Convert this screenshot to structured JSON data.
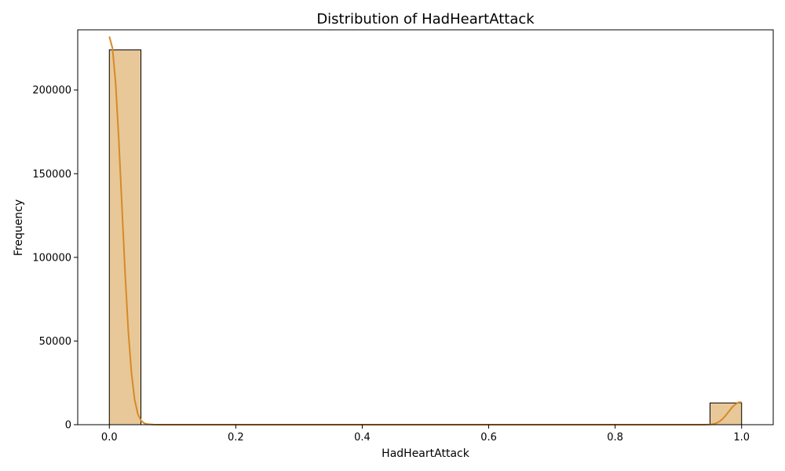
{
  "chart_data": {
    "type": "bar",
    "title": "Distribution of HadHeartAttack",
    "xlabel": "HadHeartAttack",
    "ylabel": "Frequency",
    "xlim": [
      -0.05,
      1.05
    ],
    "ylim": [
      0,
      236000
    ],
    "x_ticks": [
      {
        "value": 0.0,
        "label": "0.0"
      },
      {
        "value": 0.2,
        "label": "0.2"
      },
      {
        "value": 0.4,
        "label": "0.4"
      },
      {
        "value": 0.6,
        "label": "0.6"
      },
      {
        "value": 0.8,
        "label": "0.8"
      },
      {
        "value": 1.0,
        "label": "1.0"
      }
    ],
    "y_ticks": [
      {
        "value": 0,
        "label": "0"
      },
      {
        "value": 50000,
        "label": "50000"
      },
      {
        "value": 100000,
        "label": "100000"
      },
      {
        "value": 150000,
        "label": "150000"
      },
      {
        "value": 200000,
        "label": "200000"
      }
    ],
    "bins": [
      {
        "x0": 0.0,
        "x1": 0.05,
        "count": 224000
      },
      {
        "x0": 0.95,
        "x1": 1.0,
        "count": 13000
      }
    ],
    "kde": [
      [
        0.0,
        232000
      ],
      [
        0.005,
        225000
      ],
      [
        0.01,
        204000
      ],
      [
        0.015,
        170000
      ],
      [
        0.02,
        130000
      ],
      [
        0.025,
        90000
      ],
      [
        0.03,
        56000
      ],
      [
        0.035,
        31000
      ],
      [
        0.04,
        15000
      ],
      [
        0.045,
        6500
      ],
      [
        0.05,
        2500
      ],
      [
        0.055,
        900
      ],
      [
        0.06,
        300
      ],
      [
        0.07,
        50
      ],
      [
        0.08,
        0
      ],
      [
        0.9,
        0
      ],
      [
        0.94,
        0
      ],
      [
        0.95,
        120
      ],
      [
        0.955,
        350
      ],
      [
        0.96,
        900
      ],
      [
        0.965,
        1900
      ],
      [
        0.97,
        3500
      ],
      [
        0.975,
        5600
      ],
      [
        0.98,
        8000
      ],
      [
        0.985,
        10400
      ],
      [
        0.99,
        12200
      ],
      [
        0.995,
        13300
      ],
      [
        1.0,
        13500
      ]
    ],
    "grid": false,
    "colors": {
      "bar_fill": "#e8c898",
      "bar_edge": "#000000",
      "kde_line": "#d68a28"
    }
  }
}
